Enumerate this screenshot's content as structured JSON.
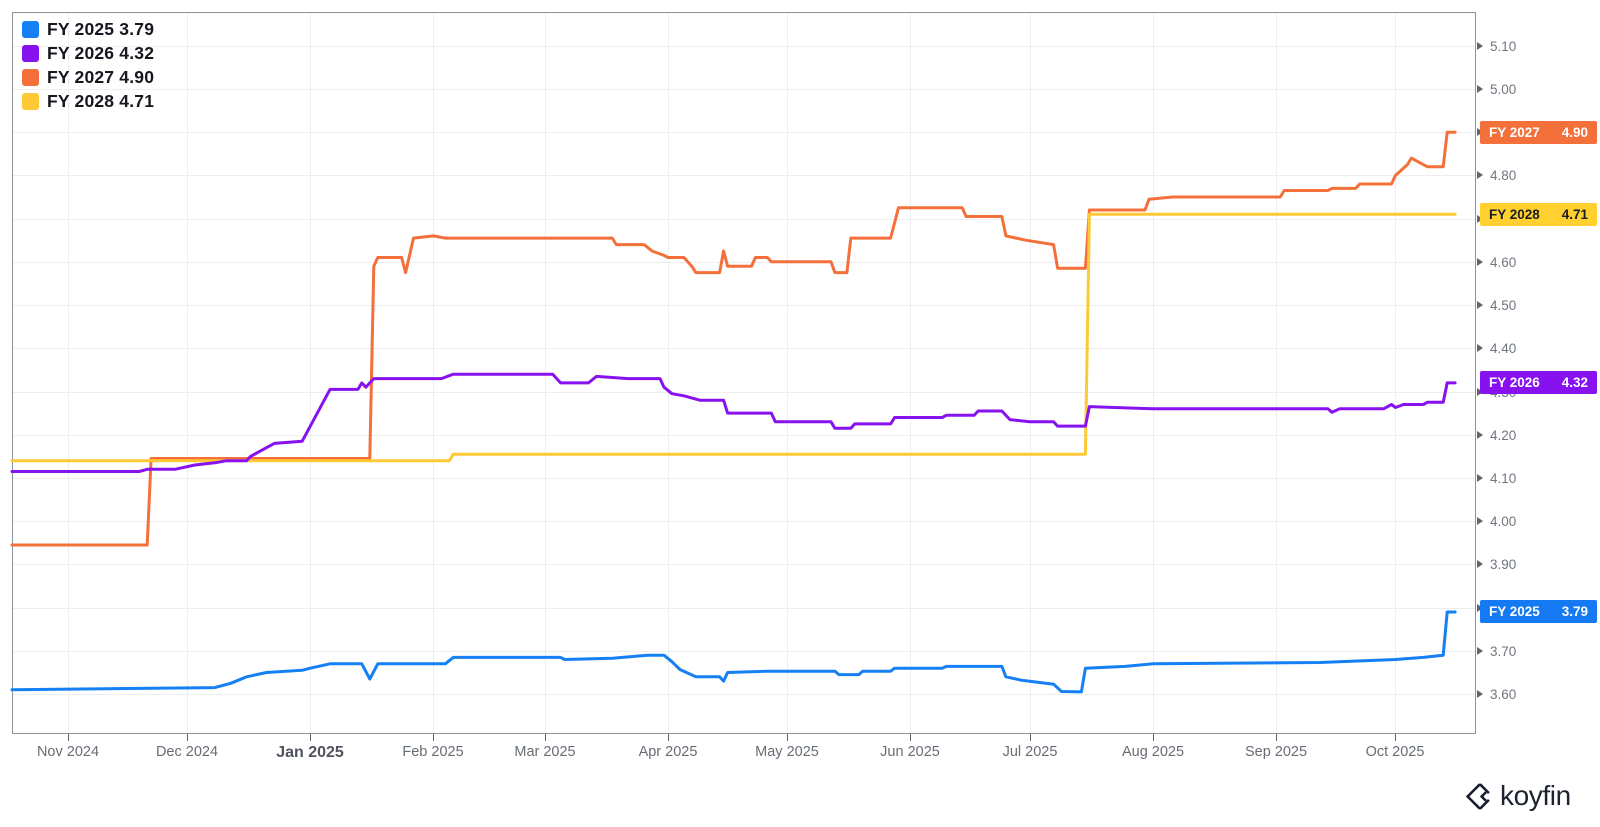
{
  "watermark": {
    "text": "koyfin"
  },
  "legend": {
    "items": [
      {
        "label": "FY 2025",
        "value": "3.79"
      },
      {
        "label": "FY 2026",
        "value": "4.32"
      },
      {
        "label": "FY 2027",
        "value": "4.90"
      },
      {
        "label": "FY 2028",
        "value": "4.71"
      }
    ]
  },
  "badges": [
    {
      "label": "FY 2027",
      "value": "4.90",
      "v": 4.9,
      "bg": "#f4703b",
      "fg": "#ffffff"
    },
    {
      "label": "FY 2028",
      "value": "4.71",
      "v": 4.71,
      "bg": "#ffd02e",
      "fg": "#1a1d26"
    },
    {
      "label": "FY 2026",
      "value": "4.32",
      "v": 4.32,
      "bg": "#8711ef",
      "fg": "#ffffff"
    },
    {
      "label": "FY 2025",
      "value": "3.79",
      "v": 3.79,
      "bg": "#1479f2",
      "fg": "#ffffff"
    }
  ],
  "colors": {
    "grid": "#edeef0",
    "border": "#8c939d",
    "tick": "#5f656d"
  },
  "chart_data": {
    "type": "line",
    "title": "",
    "x_axis": {
      "start": "2024-10-18",
      "end": "2025-10-21",
      "ticks": [
        {
          "label": "Nov 2024",
          "date": "2024-11-01",
          "bold": false
        },
        {
          "label": "Dec 2024",
          "date": "2024-12-01",
          "bold": false
        },
        {
          "label": "Jan 2025",
          "date": "2025-01-01",
          "bold": true
        },
        {
          "label": "Feb 2025",
          "date": "2025-02-01",
          "bold": false
        },
        {
          "label": "Mar 2025",
          "date": "2025-03-01",
          "bold": false
        },
        {
          "label": "Apr 2025",
          "date": "2025-04-01",
          "bold": false
        },
        {
          "label": "May 2025",
          "date": "2025-05-01",
          "bold": false
        },
        {
          "label": "Jun 2025",
          "date": "2025-06-01",
          "bold": false
        },
        {
          "label": "Jul 2025",
          "date": "2025-07-01",
          "bold": false
        },
        {
          "label": "Aug 2025",
          "date": "2025-08-01",
          "bold": false
        },
        {
          "label": "Sep 2025",
          "date": "2025-09-01",
          "bold": false
        },
        {
          "label": "Oct 2025",
          "date": "2025-10-01",
          "bold": false
        }
      ]
    },
    "y_axis": {
      "min": 3.51,
      "max": 5.178,
      "tick_step": 0.1,
      "labels": [
        "3.60",
        "3.70",
        "3.80",
        "3.90",
        "4.00",
        "4.10",
        "4.20",
        "4.30",
        "4.40",
        "4.50",
        "4.60",
        "4.70",
        "4.80",
        "4.90",
        "5.00",
        "5.10"
      ]
    },
    "series": [
      {
        "name": "FY 2025",
        "color": "#1580f4",
        "last_value": 3.79,
        "points": [
          [
            "2024-10-18",
            3.61
          ],
          [
            "2024-12-08",
            3.615
          ],
          [
            "2024-12-12",
            3.625
          ],
          [
            "2024-12-16",
            3.64
          ],
          [
            "2024-12-21",
            3.65
          ],
          [
            "2024-12-30",
            3.655
          ],
          [
            "2025-01-01",
            3.66
          ],
          [
            "2025-01-06",
            3.67
          ],
          [
            "2025-01-14",
            3.67
          ],
          [
            "2025-01-16",
            3.635
          ],
          [
            "2025-01-18",
            3.67
          ],
          [
            "2025-02-04",
            3.67
          ],
          [
            "2025-02-06",
            3.685
          ],
          [
            "2025-03-05",
            3.685
          ],
          [
            "2025-03-06",
            3.68
          ],
          [
            "2025-03-18",
            3.683
          ],
          [
            "2025-03-27",
            3.69
          ],
          [
            "2025-03-31",
            3.69
          ],
          [
            "2025-04-02",
            3.675
          ],
          [
            "2025-04-04",
            3.657
          ],
          [
            "2025-04-08",
            3.64
          ],
          [
            "2025-04-14",
            3.64
          ],
          [
            "2025-04-15",
            3.63
          ],
          [
            "2025-04-16",
            3.65
          ],
          [
            "2025-04-26",
            3.653
          ],
          [
            "2025-05-13",
            3.653
          ],
          [
            "2025-05-14",
            3.645
          ],
          [
            "2025-05-19",
            3.645
          ],
          [
            "2025-05-20",
            3.653
          ],
          [
            "2025-05-27",
            3.653
          ],
          [
            "2025-05-28",
            3.66
          ],
          [
            "2025-06-09",
            3.66
          ],
          [
            "2025-06-10",
            3.664
          ],
          [
            "2025-06-24",
            3.664
          ],
          [
            "2025-06-25",
            3.64
          ],
          [
            "2025-06-29",
            3.632
          ],
          [
            "2025-07-07",
            3.623
          ],
          [
            "2025-07-09",
            3.606
          ],
          [
            "2025-07-14",
            3.605
          ],
          [
            "2025-07-15",
            3.66
          ],
          [
            "2025-07-25",
            3.664
          ],
          [
            "2025-08-01",
            3.67
          ],
          [
            "2025-09-12",
            3.673
          ],
          [
            "2025-10-01",
            3.68
          ],
          [
            "2025-10-08",
            3.685
          ],
          [
            "2025-10-13",
            3.69
          ],
          [
            "2025-10-14",
            3.79
          ],
          [
            "2025-10-16",
            3.79
          ]
        ]
      },
      {
        "name": "FY 2026",
        "color": "#8711ef",
        "last_value": 4.32,
        "points": [
          [
            "2024-10-18",
            4.115
          ],
          [
            "2024-11-19",
            4.115
          ],
          [
            "2024-11-21",
            4.12
          ],
          [
            "2024-11-28",
            4.12
          ],
          [
            "2024-12-03",
            4.13
          ],
          [
            "2024-12-08",
            4.135
          ],
          [
            "2024-12-11",
            4.14
          ],
          [
            "2024-12-16",
            4.14
          ],
          [
            "2024-12-17",
            4.15
          ],
          [
            "2024-12-21",
            4.17
          ],
          [
            "2024-12-23",
            4.18
          ],
          [
            "2024-12-30",
            4.185
          ],
          [
            "2025-01-06",
            4.305
          ],
          [
            "2025-01-13",
            4.305
          ],
          [
            "2025-01-14",
            4.32
          ],
          [
            "2025-01-15",
            4.31
          ],
          [
            "2025-01-17",
            4.33
          ],
          [
            "2025-02-03",
            4.33
          ],
          [
            "2025-02-06",
            4.34
          ],
          [
            "2025-03-03",
            4.34
          ],
          [
            "2025-03-05",
            4.32
          ],
          [
            "2025-03-12",
            4.32
          ],
          [
            "2025-03-14",
            4.335
          ],
          [
            "2025-03-22",
            4.33
          ],
          [
            "2025-03-30",
            4.33
          ],
          [
            "2025-03-31",
            4.31
          ],
          [
            "2025-04-02",
            4.295
          ],
          [
            "2025-04-05",
            4.29
          ],
          [
            "2025-04-09",
            4.28
          ],
          [
            "2025-04-15",
            4.28
          ],
          [
            "2025-04-16",
            4.25
          ],
          [
            "2025-04-27",
            4.25
          ],
          [
            "2025-04-28",
            4.23
          ],
          [
            "2025-05-12",
            4.23
          ],
          [
            "2025-05-13",
            4.215
          ],
          [
            "2025-05-17",
            4.215
          ],
          [
            "2025-05-18",
            4.225
          ],
          [
            "2025-05-27",
            4.225
          ],
          [
            "2025-05-28",
            4.24
          ],
          [
            "2025-06-09",
            4.24
          ],
          [
            "2025-06-10",
            4.245
          ],
          [
            "2025-06-17",
            4.245
          ],
          [
            "2025-06-18",
            4.255
          ],
          [
            "2025-06-24",
            4.255
          ],
          [
            "2025-06-26",
            4.235
          ],
          [
            "2025-07-01",
            4.23
          ],
          [
            "2025-07-07",
            4.23
          ],
          [
            "2025-07-08",
            4.22
          ],
          [
            "2025-07-15",
            4.22
          ],
          [
            "2025-07-16",
            4.265
          ],
          [
            "2025-08-01",
            4.26
          ],
          [
            "2025-09-14",
            4.26
          ],
          [
            "2025-09-15",
            4.252
          ],
          [
            "2025-09-17",
            4.26
          ],
          [
            "2025-09-28",
            4.26
          ],
          [
            "2025-09-30",
            4.27
          ],
          [
            "2025-10-01",
            4.263
          ],
          [
            "2025-10-03",
            4.27
          ],
          [
            "2025-10-08",
            4.27
          ],
          [
            "2025-10-09",
            4.275
          ],
          [
            "2025-10-13",
            4.275
          ],
          [
            "2025-10-14",
            4.32
          ],
          [
            "2025-10-16",
            4.32
          ]
        ]
      },
      {
        "name": "FY 2027",
        "color": "#f4703b",
        "last_value": 4.9,
        "points": [
          [
            "2024-10-18",
            3.945
          ],
          [
            "2024-11-21",
            3.945
          ],
          [
            "2024-11-22",
            4.145
          ],
          [
            "2025-01-16",
            4.145
          ],
          [
            "2025-01-17",
            4.59
          ],
          [
            "2025-01-18",
            4.61
          ],
          [
            "2025-01-24",
            4.61
          ],
          [
            "2025-01-25",
            4.575
          ],
          [
            "2025-01-27",
            4.655
          ],
          [
            "2025-02-01",
            4.66
          ],
          [
            "2025-02-04",
            4.655
          ],
          [
            "2025-03-18",
            4.655
          ],
          [
            "2025-03-19",
            4.64
          ],
          [
            "2025-03-26",
            4.64
          ],
          [
            "2025-03-28",
            4.625
          ],
          [
            "2025-03-31",
            4.615
          ],
          [
            "2025-04-01",
            4.61
          ],
          [
            "2025-04-05",
            4.61
          ],
          [
            "2025-04-07",
            4.59
          ],
          [
            "2025-04-08",
            4.575
          ],
          [
            "2025-04-14",
            4.575
          ],
          [
            "2025-04-15",
            4.625
          ],
          [
            "2025-04-16",
            4.59
          ],
          [
            "2025-04-22",
            4.59
          ],
          [
            "2025-04-23",
            4.61
          ],
          [
            "2025-04-26",
            4.61
          ],
          [
            "2025-04-27",
            4.6
          ],
          [
            "2025-05-12",
            4.6
          ],
          [
            "2025-05-13",
            4.575
          ],
          [
            "2025-05-16",
            4.575
          ],
          [
            "2025-05-17",
            4.655
          ],
          [
            "2025-05-27",
            4.655
          ],
          [
            "2025-05-29",
            4.725
          ],
          [
            "2025-06-14",
            4.725
          ],
          [
            "2025-06-15",
            4.705
          ],
          [
            "2025-06-24",
            4.705
          ],
          [
            "2025-06-25",
            4.66
          ],
          [
            "2025-06-30",
            4.65
          ],
          [
            "2025-07-07",
            4.64
          ],
          [
            "2025-07-08",
            4.585
          ],
          [
            "2025-07-15",
            4.585
          ],
          [
            "2025-07-16",
            4.72
          ],
          [
            "2025-07-30",
            4.72
          ],
          [
            "2025-07-31",
            4.745
          ],
          [
            "2025-08-06",
            4.75
          ],
          [
            "2025-09-02",
            4.75
          ],
          [
            "2025-09-03",
            4.765
          ],
          [
            "2025-09-14",
            4.765
          ],
          [
            "2025-09-15",
            4.77
          ],
          [
            "2025-09-21",
            4.77
          ],
          [
            "2025-09-22",
            4.78
          ],
          [
            "2025-09-30",
            4.78
          ],
          [
            "2025-10-01",
            4.8
          ],
          [
            "2025-10-04",
            4.825
          ],
          [
            "2025-10-05",
            4.84
          ],
          [
            "2025-10-07",
            4.83
          ],
          [
            "2025-10-09",
            4.82
          ],
          [
            "2025-10-13",
            4.82
          ],
          [
            "2025-10-14",
            4.9
          ],
          [
            "2025-10-16",
            4.9
          ]
        ]
      },
      {
        "name": "FY 2028",
        "color": "#ffc935",
        "last_value": 4.71,
        "points": [
          [
            "2024-10-18",
            4.14
          ],
          [
            "2025-02-05",
            4.14
          ],
          [
            "2025-02-06",
            4.155
          ],
          [
            "2025-07-15",
            4.155
          ],
          [
            "2025-07-16",
            4.71
          ],
          [
            "2025-10-16",
            4.71
          ]
        ]
      }
    ]
  }
}
